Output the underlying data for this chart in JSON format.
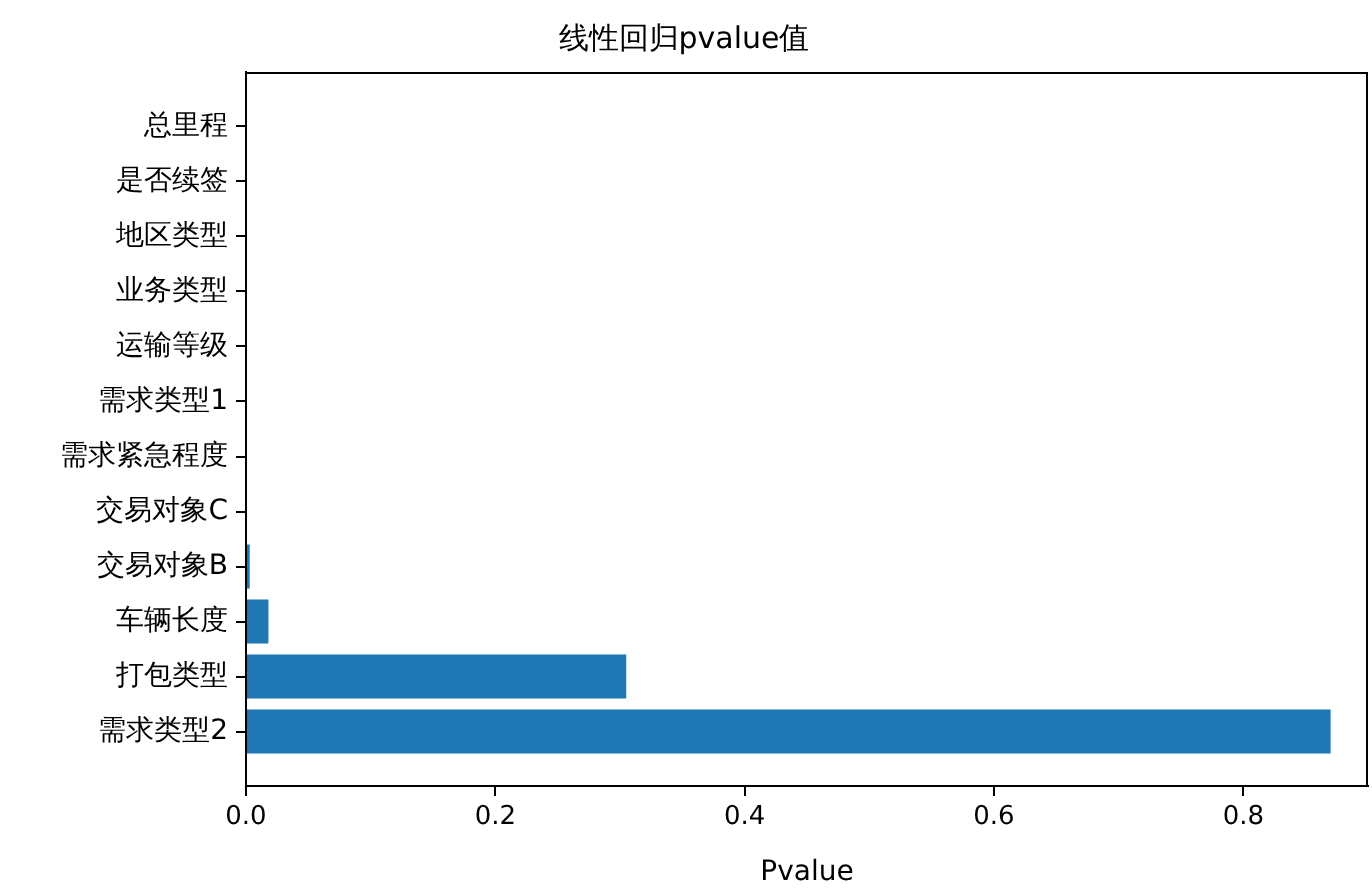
{
  "chart_data": {
    "type": "bar",
    "orientation": "horizontal",
    "title": "线性回归pvalue值",
    "xlabel": "Pvalue",
    "categories": [
      "总里程",
      "是否续签",
      "地区类型",
      "业务类型",
      "运输等级",
      "需求类型1",
      "需求紧急程度",
      "交易对象C",
      "交易对象B",
      "车辆长度",
      "打包类型",
      "需求类型2"
    ],
    "values": [
      0,
      0,
      0,
      0,
      0,
      0,
      0,
      0,
      0.003,
      0.018,
      0.305,
      0.87
    ],
    "color": "#1f77b4",
    "xlim": [
      0,
      0.9
    ],
    "xticks": [
      {
        "value": 0,
        "label": "0.0"
      },
      0.2,
      0.4,
      0.6,
      0.8
    ],
    "grid": false,
    "legend": false
  }
}
